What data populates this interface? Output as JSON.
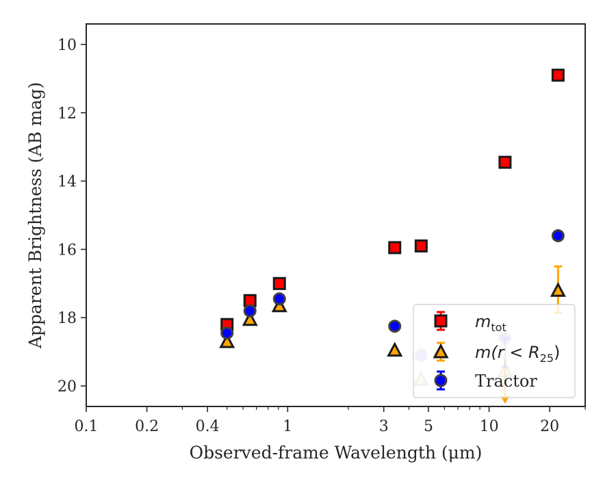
{
  "chart_data": {
    "type": "scatter",
    "xlabel": "Observed-frame Wavelength (μm)",
    "ylabel": "Apparent Brightness (AB mag)",
    "xscale": "log",
    "xlim": [
      0.1,
      30
    ],
    "ylim": [
      20.6,
      9.4
    ],
    "y_inverted": true,
    "x_ticks": [
      {
        "value": 0.1,
        "label": "0.1"
      },
      {
        "value": 0.2,
        "label": "0.2"
      },
      {
        "value": 0.4,
        "label": "0.4"
      },
      {
        "value": 1,
        "label": "1"
      },
      {
        "value": 3,
        "label": "3"
      },
      {
        "value": 5,
        "label": "5"
      },
      {
        "value": 10,
        "label": "10"
      },
      {
        "value": 20,
        "label": "20"
      }
    ],
    "y_ticks": [
      {
        "value": 10,
        "label": "10"
      },
      {
        "value": 12,
        "label": "12"
      },
      {
        "value": 14,
        "label": "14"
      },
      {
        "value": 16,
        "label": "16"
      },
      {
        "value": 18,
        "label": "18"
      },
      {
        "value": 20,
        "label": "20"
      }
    ],
    "legend": {
      "placement": "lower-right"
    },
    "series": [
      {
        "name": "m_tot",
        "legend_main": "m",
        "legend_sub": "tot",
        "marker": "square",
        "color": "#ff0000",
        "error_color": "#ff0000",
        "points": [
          {
            "x": 0.5,
            "y": 18.2
          },
          {
            "x": 0.65,
            "y": 17.5
          },
          {
            "x": 0.91,
            "y": 17.0
          },
          {
            "x": 3.4,
            "y": 15.95
          },
          {
            "x": 4.6,
            "y": 15.9
          },
          {
            "x": 12.0,
            "y": 13.45
          },
          {
            "x": 22.0,
            "y": 10.9
          }
        ]
      },
      {
        "name": "m(r < R_25)",
        "legend_main": "m(r < R",
        "legend_sub": "25",
        "legend_close": ")",
        "marker": "triangle",
        "color": "#ffa500",
        "error_color": "#ffa500",
        "points": [
          {
            "x": 0.5,
            "y": 18.7
          },
          {
            "x": 0.65,
            "y": 18.05
          },
          {
            "x": 0.91,
            "y": 17.65
          },
          {
            "x": 3.4,
            "y": 18.95
          },
          {
            "x": 4.6,
            "y": 19.8,
            "faded": true
          },
          {
            "x": 12.0,
            "y": 19.55,
            "faded": true,
            "err_low": 19.2,
            "upper_limit": true
          },
          {
            "x": 22.0,
            "y": 17.2,
            "err_low": 16.5,
            "err_high": 17.85
          }
        ]
      },
      {
        "name": "Tractor",
        "legend_main": "Tractor",
        "marker": "circle",
        "color": "#0000ff",
        "error_color": "#0000ff",
        "points": [
          {
            "x": 0.5,
            "y": 18.45
          },
          {
            "x": 0.65,
            "y": 17.8
          },
          {
            "x": 0.91,
            "y": 17.45
          },
          {
            "x": 3.4,
            "y": 18.25
          },
          {
            "x": 4.6,
            "y": 19.1,
            "faded": true
          },
          {
            "x": 12.0,
            "y": 18.6,
            "faded": true,
            "err_high": 19.45
          },
          {
            "x": 22.0,
            "y": 15.6
          }
        ]
      }
    ]
  }
}
